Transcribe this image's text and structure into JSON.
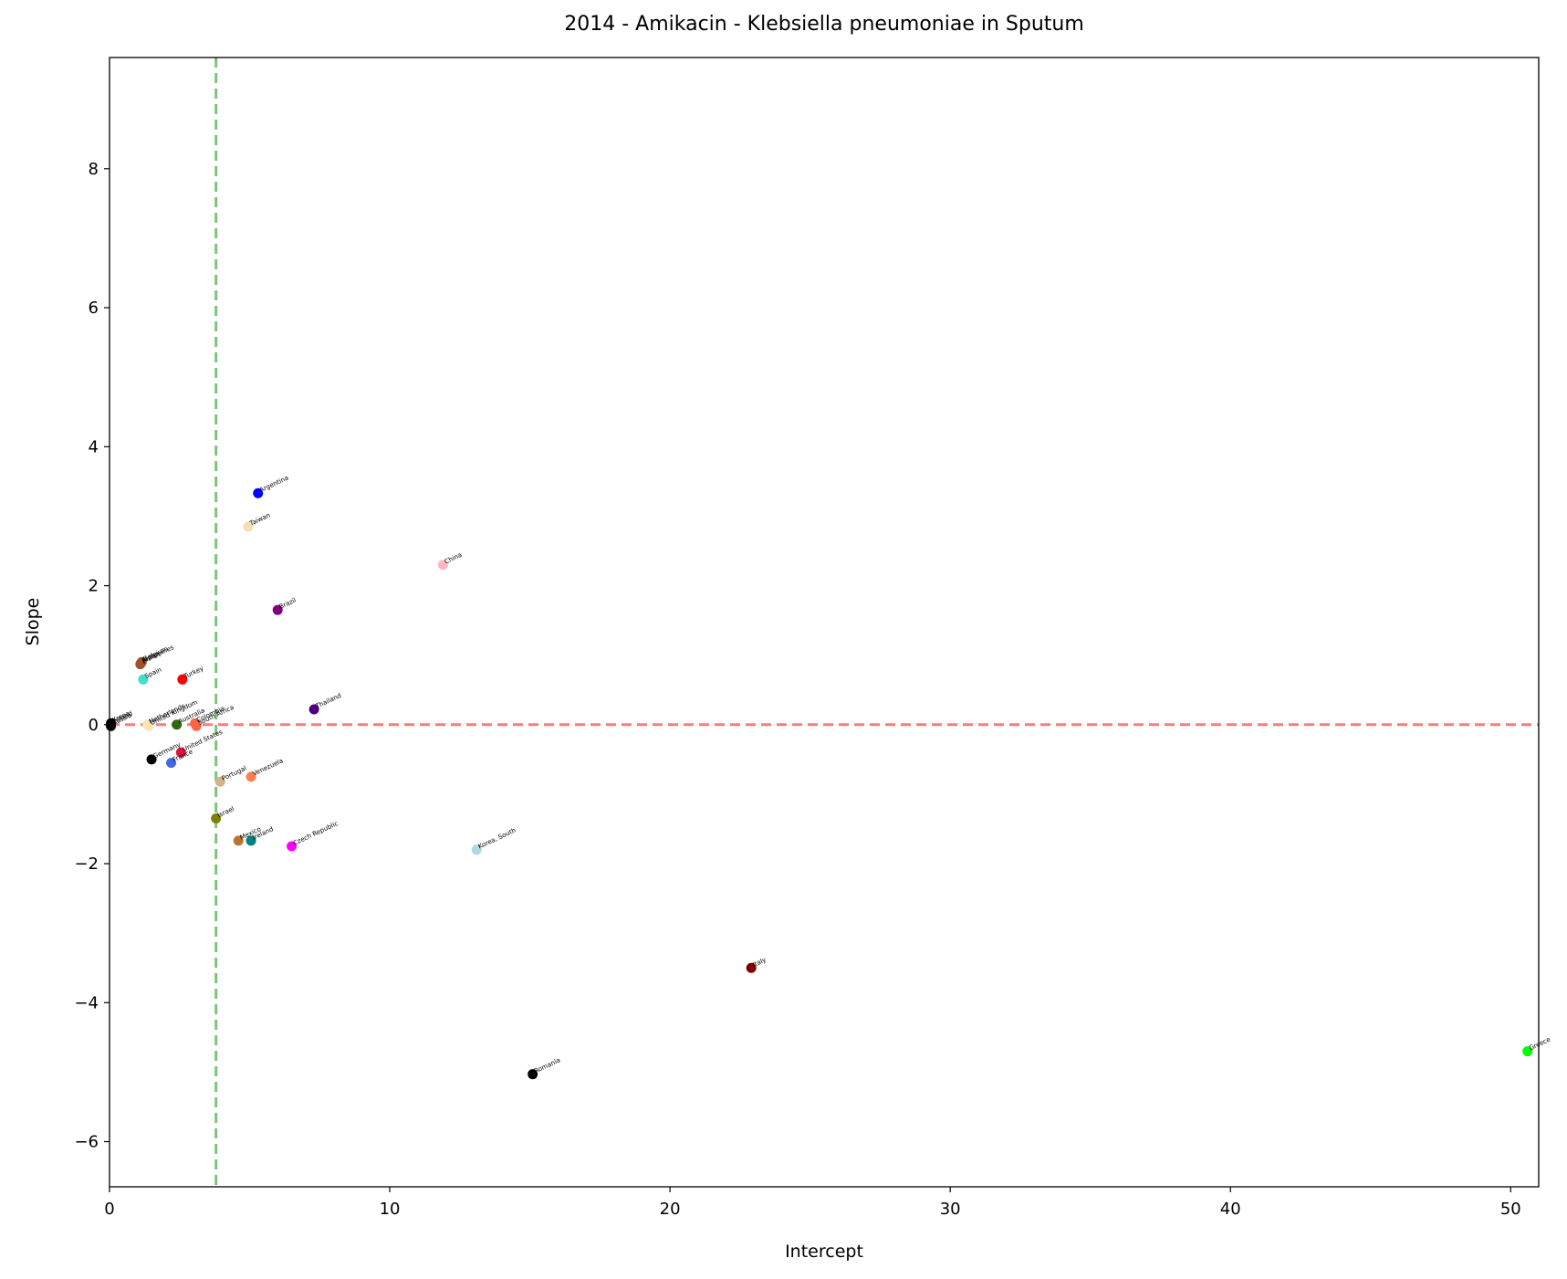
{
  "chart_data": {
    "type": "scatter",
    "title": "2014 - Amikacin - Klebsiella pneumoniae in Sputum",
    "xlabel": "Intercept",
    "ylabel": "Slope",
    "xlim": [
      0,
      51
    ],
    "ylim": [
      -6.65,
      9.6
    ],
    "xticks": [
      0,
      10,
      20,
      30,
      40,
      50
    ],
    "yticks": [
      -6,
      -4,
      -2,
      0,
      2,
      4,
      6,
      8
    ],
    "grid": false,
    "reference_lines": [
      {
        "orientation": "horizontal",
        "value": 0,
        "color": "#f08080",
        "style": "dashed"
      },
      {
        "orientation": "vertical",
        "value": 3.8,
        "color": "#7bc47b",
        "style": "dashed"
      }
    ],
    "points": [
      {
        "label": "Argentina",
        "x": 5.3,
        "y": 3.33,
        "color": "#0000ff"
      },
      {
        "label": "Taiwan",
        "x": 4.95,
        "y": 2.85,
        "color": "#f5deb3"
      },
      {
        "label": "China",
        "x": 11.9,
        "y": 2.3,
        "color": "#ffb6c1"
      },
      {
        "label": "Brazil",
        "x": 6.0,
        "y": 1.65,
        "color": "#800080"
      },
      {
        "label": "Belgium",
        "x": 1.15,
        "y": 0.9,
        "color": "#a0522d"
      },
      {
        "label": "Japan",
        "x": 1.12,
        "y": 0.88,
        "color": "#a0522d"
      },
      {
        "label": "Philippines",
        "x": 1.1,
        "y": 0.87,
        "color": "#a0522d"
      },
      {
        "label": "Spain",
        "x": 1.2,
        "y": 0.65,
        "color": "#40e0d0"
      },
      {
        "label": "Turkey",
        "x": 2.6,
        "y": 0.65,
        "color": "#ff0000"
      },
      {
        "label": "Thailand",
        "x": 7.3,
        "y": 0.22,
        "color": "#4b0082"
      },
      {
        "label": "Netherlands",
        "x": 1.35,
        "y": 0.0,
        "color": "#ffe4b5"
      },
      {
        "label": "United Kingdom",
        "x": 1.4,
        "y": -0.02,
        "color": "#ffe4b5"
      },
      {
        "label": "Australia",
        "x": 2.4,
        "y": 0.0,
        "color": "#2e6b0e"
      },
      {
        "label": "Colombia",
        "x": 3.05,
        "y": 0.02,
        "color": "#ff6347"
      },
      {
        "label": "South Africa",
        "x": 3.1,
        "y": -0.02,
        "color": "#ff6347"
      },
      {
        "label": "Korea",
        "x": 0.05,
        "y": 0.02,
        "color": "#000000"
      },
      {
        "label": "Poland",
        "x": 0.05,
        "y": 0.0,
        "color": "#000000"
      },
      {
        "label": "Russia",
        "x": 0.05,
        "y": -0.02,
        "color": "#000000"
      },
      {
        "label": "United States",
        "x": 2.55,
        "y": -0.4,
        "color": "#dc143c"
      },
      {
        "label": "Germany",
        "x": 1.5,
        "y": -0.5,
        "color": "#000000"
      },
      {
        "label": "France",
        "x": 2.2,
        "y": -0.55,
        "color": "#4169e1"
      },
      {
        "label": "Portugal",
        "x": 3.95,
        "y": -0.82,
        "color": "#d2b48c"
      },
      {
        "label": "Venezuela",
        "x": 5.05,
        "y": -0.75,
        "color": "#ff7f50"
      },
      {
        "label": "Israel",
        "x": 3.8,
        "y": -1.35,
        "color": "#808000"
      },
      {
        "label": "Mexico",
        "x": 4.6,
        "y": -1.67,
        "color": "#b87333"
      },
      {
        "label": "Ireland",
        "x": 5.05,
        "y": -1.67,
        "color": "#008080"
      },
      {
        "label": "Czech Republic",
        "x": 6.5,
        "y": -1.75,
        "color": "#ff00ff"
      },
      {
        "label": "Korea, South",
        "x": 13.1,
        "y": -1.8,
        "color": "#add8e6"
      },
      {
        "label": "Italy",
        "x": 22.9,
        "y": -3.5,
        "color": "#800000"
      },
      {
        "label": "Romania",
        "x": 15.1,
        "y": -5.03,
        "color": "#000000"
      },
      {
        "label": "Greece",
        "x": 50.6,
        "y": -4.7,
        "color": "#00ff00"
      }
    ]
  }
}
